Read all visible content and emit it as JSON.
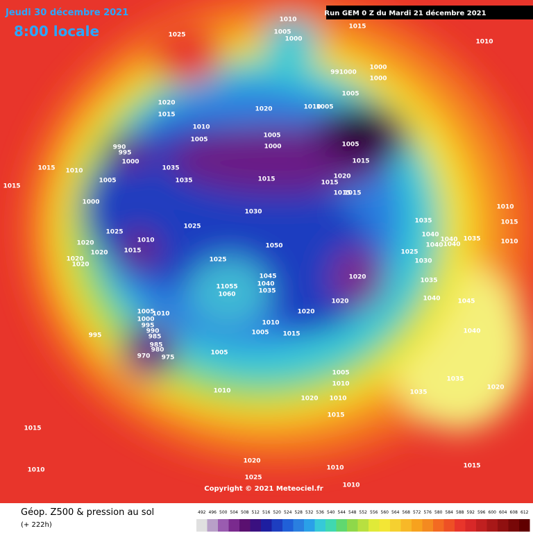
{
  "header": {
    "date": "Jeudi 30 décembre 2021",
    "time": "8:00 locale",
    "run": "Run GEM 0 Z du Mardi 21 décembre 2021"
  },
  "copyright": "Copyright © 2021 Meteociel.fr",
  "legend": {
    "title": "Géop. Z500 & pression au sol",
    "lead": "(+ 222h)",
    "scale": [
      "492",
      "496",
      "500",
      "504",
      "508",
      "512",
      "516",
      "520",
      "524",
      "528",
      "532",
      "536",
      "540",
      "544",
      "548",
      "552",
      "556",
      "560",
      "564",
      "568",
      "572",
      "576",
      "580",
      "584",
      "588",
      "592",
      "596",
      "600",
      "604",
      "608",
      "612"
    ]
  },
  "pressure_labels": [
    "1025",
    "1010",
    "1005",
    "1000",
    "1015",
    "1010",
    "1000",
    "1000",
    "991000",
    "1005",
    "1020",
    "1015",
    "1020",
    "1010",
    "1005",
    "1010",
    "1005",
    "1005",
    "1000",
    "1005",
    "1015",
    "990",
    "995",
    "1000",
    "1015",
    "1010",
    "1035",
    "1035",
    "1015",
    "1020",
    "1015",
    "1015",
    "1015",
    "1015",
    "1005",
    "1000",
    "1030",
    "1010",
    "1035",
    "1015",
    "1025",
    "1025",
    "1040",
    "1040",
    "1035",
    "1010",
    "1020",
    "1010",
    "1015",
    "1020",
    "1050",
    "1040",
    "1040",
    "1025",
    "1020",
    "1020",
    "1025",
    "1030",
    "1045",
    "1040",
    "1035",
    "1020",
    "1035",
    "11055",
    "1060",
    "1020",
    "1040",
    "1045",
    "1005",
    "1010",
    "1000",
    "995",
    "990",
    "985",
    "1020",
    "1010",
    "1005",
    "1015",
    "1040",
    "995",
    "985",
    "980",
    "970",
    "975",
    "1005",
    "1005",
    "1010",
    "1035",
    "1020",
    "1010",
    "1035",
    "1020",
    "1010",
    "1015",
    "1015",
    "1020",
    "1015",
    "1010",
    "1010",
    "1025",
    "1010"
  ]
}
